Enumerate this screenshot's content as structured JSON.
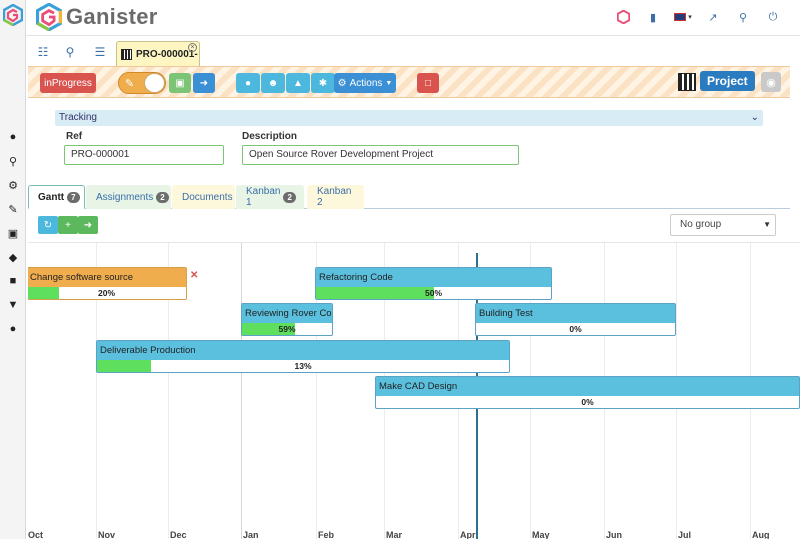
{
  "app": {
    "name": "Ganister"
  },
  "top_icons": [
    "ganister-badge-icon",
    "book-icon",
    "flag-uk-icon",
    "external-link-icon",
    "search-icon",
    "power-icon"
  ],
  "left_icons": [
    "user-icon",
    "search-gear-icon",
    "gears-icon",
    "pencil-icon",
    "factory-icon",
    "tag-icon",
    "folder-icon",
    "cart-icon",
    "users-icon"
  ],
  "doc_tab": {
    "label": "PRO-000001-"
  },
  "toolbar": {
    "status_label": "inProgress",
    "actions_label": "Actions",
    "project_label": "Project"
  },
  "section": {
    "title": "Tracking"
  },
  "form": {
    "ref_label": "Ref",
    "ref_value": "PRO-000001",
    "desc_label": "Description",
    "desc_value": "Open Source Rover Development Project"
  },
  "tabs": [
    {
      "label": "Gantt",
      "badge": "7"
    },
    {
      "label": "Assignments",
      "badge": "2"
    },
    {
      "label": "Documents"
    },
    {
      "label": "Kanban 1",
      "badge": "2"
    },
    {
      "label": "Kanban 2"
    }
  ],
  "group_select": {
    "value": "No group"
  },
  "gantt": {
    "tasks": [
      {
        "name": "Change software source",
        "progress": 20,
        "label": "20%",
        "color": "#f0ad4e"
      },
      {
        "name": "Refactoring Code",
        "progress": 50,
        "label": "50%",
        "color": "#5bc0de"
      },
      {
        "name": "Reviewing Rover Code",
        "progress": 59,
        "label": "59%",
        "color": "#5bc0de"
      },
      {
        "name": "Building Test",
        "progress": 0,
        "label": "0%",
        "color": "#5bc0de"
      },
      {
        "name": "Deliverable Production",
        "progress": 13,
        "label": "13%",
        "color": "#5bc0de"
      },
      {
        "name": "Make CAD Design",
        "progress": 0,
        "label": "0%",
        "color": "#5bc0de"
      }
    ],
    "months": [
      "Oct",
      "Nov",
      "Dec",
      "Jan",
      "Feb",
      "Mar",
      "Apr",
      "May",
      "Jun",
      "Jul",
      "Aug"
    ]
  }
}
